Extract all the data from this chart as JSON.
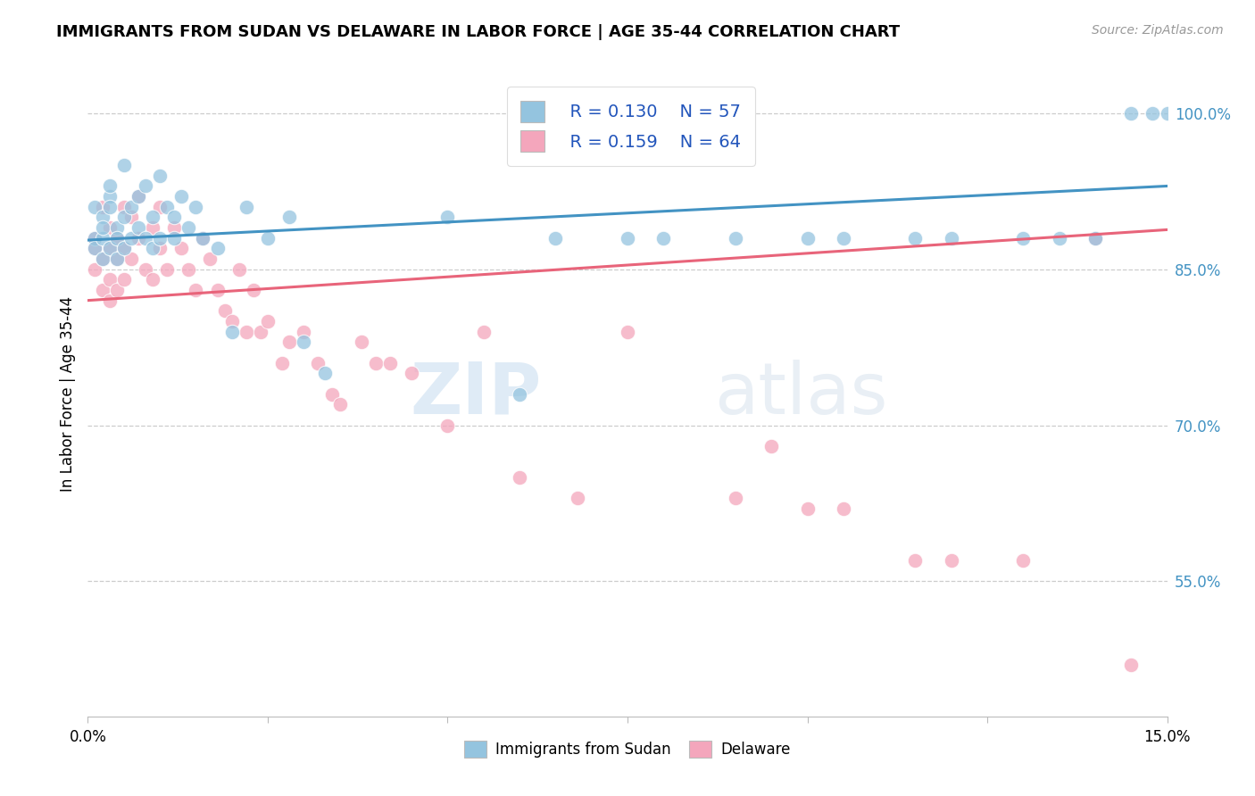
{
  "title": "IMMIGRANTS FROM SUDAN VS DELAWARE IN LABOR FORCE | AGE 35-44 CORRELATION CHART",
  "source": "Source: ZipAtlas.com",
  "ylabel": "In Labor Force | Age 35-44",
  "legend_r1": "R = 0.130",
  "legend_n1": "N = 57",
  "legend_r2": "R = 0.159",
  "legend_n2": "N = 64",
  "legend_label1": "Immigrants from Sudan",
  "legend_label2": "Delaware",
  "blue_color": "#94c4df",
  "pink_color": "#f4a6bc",
  "blue_line_color": "#4393c3",
  "pink_line_color": "#e8647a",
  "watermark_color": "#d0e8f5",
  "xmin": 0.0,
  "xmax": 0.15,
  "ymin": 0.42,
  "ymax": 1.04,
  "ytick_vals": [
    0.55,
    0.7,
    0.85,
    1.0
  ],
  "ytick_labels": [
    "55.0%",
    "70.0%",
    "85.0%",
    "100.0%"
  ],
  "blue_scatter_x": [
    0.001,
    0.001,
    0.001,
    0.002,
    0.002,
    0.002,
    0.002,
    0.003,
    0.003,
    0.003,
    0.003,
    0.004,
    0.004,
    0.004,
    0.005,
    0.005,
    0.005,
    0.006,
    0.006,
    0.007,
    0.007,
    0.008,
    0.008,
    0.009,
    0.009,
    0.01,
    0.01,
    0.011,
    0.012,
    0.012,
    0.013,
    0.014,
    0.015,
    0.016,
    0.018,
    0.02,
    0.022,
    0.025,
    0.028,
    0.03,
    0.033,
    0.05,
    0.06,
    0.065,
    0.075,
    0.08,
    0.09,
    0.1,
    0.105,
    0.115,
    0.12,
    0.13,
    0.135,
    0.14,
    0.145,
    0.148,
    0.15
  ],
  "blue_scatter_y": [
    0.88,
    0.91,
    0.87,
    0.9,
    0.88,
    0.86,
    0.89,
    0.92,
    0.87,
    0.91,
    0.93,
    0.89,
    0.86,
    0.88,
    0.95,
    0.9,
    0.87,
    0.91,
    0.88,
    0.92,
    0.89,
    0.93,
    0.88,
    0.9,
    0.87,
    0.94,
    0.88,
    0.91,
    0.9,
    0.88,
    0.92,
    0.89,
    0.91,
    0.88,
    0.87,
    0.79,
    0.91,
    0.88,
    0.9,
    0.78,
    0.75,
    0.9,
    0.73,
    0.88,
    0.88,
    0.88,
    0.88,
    0.88,
    0.88,
    0.88,
    0.88,
    0.88,
    0.88,
    0.88,
    1.0,
    1.0,
    1.0
  ],
  "pink_scatter_x": [
    0.001,
    0.001,
    0.001,
    0.002,
    0.002,
    0.002,
    0.003,
    0.003,
    0.003,
    0.003,
    0.004,
    0.004,
    0.004,
    0.005,
    0.005,
    0.005,
    0.006,
    0.006,
    0.007,
    0.007,
    0.008,
    0.009,
    0.009,
    0.01,
    0.01,
    0.011,
    0.012,
    0.013,
    0.014,
    0.015,
    0.016,
    0.017,
    0.018,
    0.019,
    0.02,
    0.021,
    0.022,
    0.023,
    0.024,
    0.025,
    0.027,
    0.028,
    0.03,
    0.032,
    0.034,
    0.035,
    0.038,
    0.04,
    0.042,
    0.045,
    0.05,
    0.055,
    0.06,
    0.068,
    0.075,
    0.09,
    0.095,
    0.1,
    0.105,
    0.115,
    0.12,
    0.13,
    0.14,
    0.145
  ],
  "pink_scatter_y": [
    0.88,
    0.85,
    0.87,
    0.91,
    0.86,
    0.83,
    0.89,
    0.87,
    0.84,
    0.82,
    0.88,
    0.86,
    0.83,
    0.91,
    0.87,
    0.84,
    0.9,
    0.86,
    0.92,
    0.88,
    0.85,
    0.89,
    0.84,
    0.91,
    0.87,
    0.85,
    0.89,
    0.87,
    0.85,
    0.83,
    0.88,
    0.86,
    0.83,
    0.81,
    0.8,
    0.85,
    0.79,
    0.83,
    0.79,
    0.8,
    0.76,
    0.78,
    0.79,
    0.76,
    0.73,
    0.72,
    0.78,
    0.76,
    0.76,
    0.75,
    0.7,
    0.79,
    0.65,
    0.63,
    0.79,
    0.63,
    0.68,
    0.62,
    0.62,
    0.57,
    0.57,
    0.57,
    0.88,
    0.47
  ]
}
